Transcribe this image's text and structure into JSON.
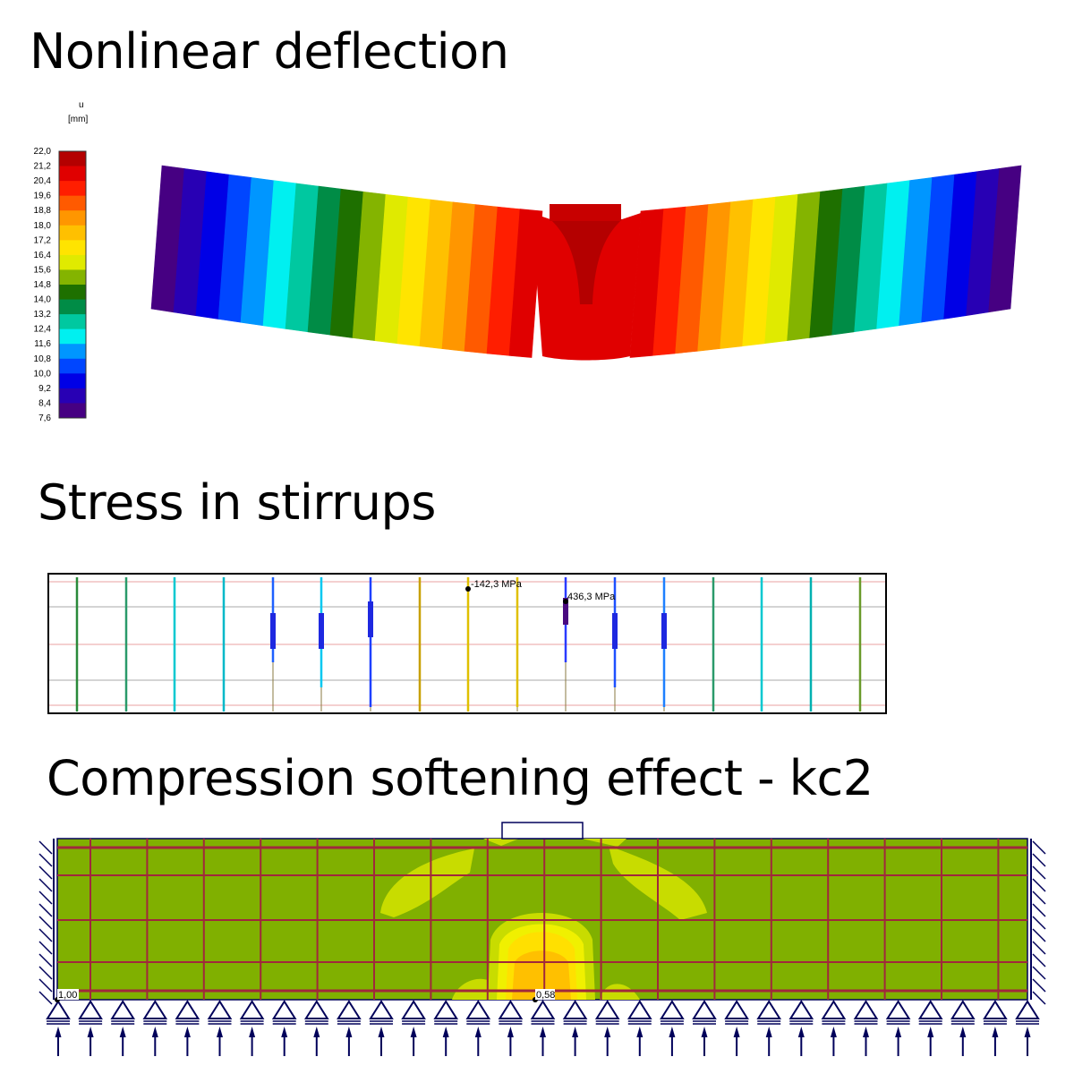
{
  "sections": {
    "deflection_title": "Nonlinear deflection",
    "stirrups_title": "Stress in stirrups",
    "softening_title": "Compression softening effect - kc2"
  },
  "legend": {
    "quantity": "u",
    "unit": "[mm]",
    "ticks": [
      "22,0",
      "21,2",
      "20,4",
      "19,6",
      "18,8",
      "18,0",
      "17,2",
      "16,4",
      "15,6",
      "14,8",
      "14,0",
      "13,2",
      "12,4",
      "11,6",
      "10,8",
      "10,0",
      "9,2",
      "8,4",
      "7,6"
    ],
    "colors": [
      "#b40000",
      "#e00000",
      "#ff1e00",
      "#ff5a00",
      "#ff9600",
      "#ffc000",
      "#ffe400",
      "#e0ea00",
      "#84b400",
      "#1e7000",
      "#008c46",
      "#00c8a0",
      "#00f0f0",
      "#0096ff",
      "#0046ff",
      "#0000e6",
      "#2800b4",
      "#460082"
    ]
  },
  "stirrups": {
    "labels": {
      "min": "-142,3 MPa",
      "max": "436,3 MPa"
    }
  },
  "softening": {
    "labels": {
      "left": "1,00",
      "min": "0,58"
    },
    "colors": {
      "base": "#80b000",
      "light": "#c8dc00",
      "yellow": "#f0f000",
      "orange": "#ffc000",
      "grid": "#a0283c",
      "support": "#00005a"
    }
  }
}
